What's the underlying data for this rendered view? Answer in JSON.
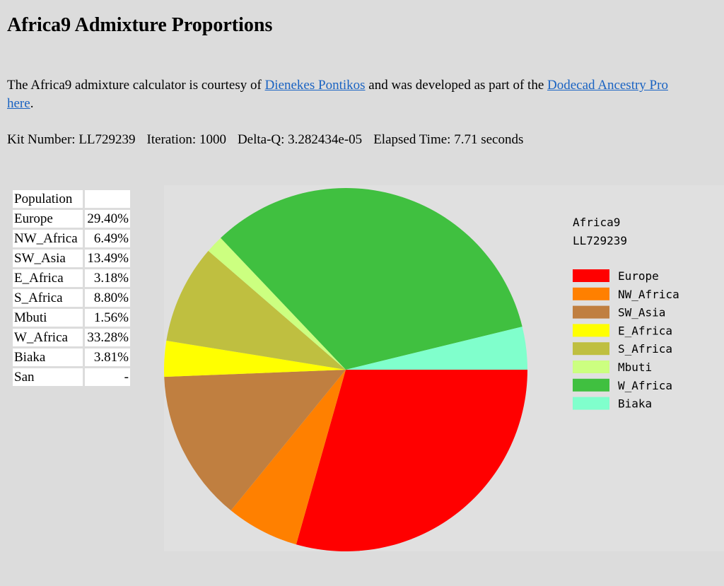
{
  "page_title": "Africa9 Admixture Proportions",
  "intro": {
    "text1": "The Africa9 admixture calculator is courtesy of ",
    "link1": "Dienekes Pontikos",
    "text2": " and was developed as part of the ",
    "link2": "Dodecad Ancestry Pro",
    "link3": "here",
    "text3": "."
  },
  "kit": {
    "number_label": "Kit Number:",
    "number": "LL729239",
    "iteration_label": "Iteration:",
    "iteration": "1000",
    "deltaq_label": "Delta-Q:",
    "deltaq": "3.282434e-05",
    "elapsed_label": "Elapsed Time:",
    "elapsed": "7.71 seconds"
  },
  "table": {
    "header": "Population",
    "rows": [
      {
        "name": "Europe",
        "value": "29.40%"
      },
      {
        "name": "NW_Africa",
        "value": "6.49%"
      },
      {
        "name": "SW_Asia",
        "value": "13.49%"
      },
      {
        "name": "E_Africa",
        "value": "3.18%"
      },
      {
        "name": "S_Africa",
        "value": "8.80%"
      },
      {
        "name": "Mbuti",
        "value": "1.56%"
      },
      {
        "name": "W_Africa",
        "value": "33.28%"
      },
      {
        "name": "Biaka",
        "value": "3.81%"
      },
      {
        "name": "San",
        "value": "-"
      }
    ]
  },
  "chart_data": {
    "type": "pie",
    "title": "Africa9",
    "subtitle": "LL729239",
    "legend_position": "right",
    "slices": [
      {
        "name": "Europe",
        "value": 29.4,
        "color": "#ff0000"
      },
      {
        "name": "NW_Africa",
        "value": 6.49,
        "color": "#ff8000"
      },
      {
        "name": "SW_Asia",
        "value": 13.49,
        "color": "#c07f40"
      },
      {
        "name": "E_Africa",
        "value": 3.18,
        "color": "#ffff00"
      },
      {
        "name": "S_Africa",
        "value": 8.8,
        "color": "#bfbf40"
      },
      {
        "name": "Mbuti",
        "value": 1.56,
        "color": "#ccff80"
      },
      {
        "name": "W_Africa",
        "value": 33.28,
        "color": "#40c040"
      },
      {
        "name": "Biaka",
        "value": 3.81,
        "color": "#80ffcc"
      }
    ]
  }
}
